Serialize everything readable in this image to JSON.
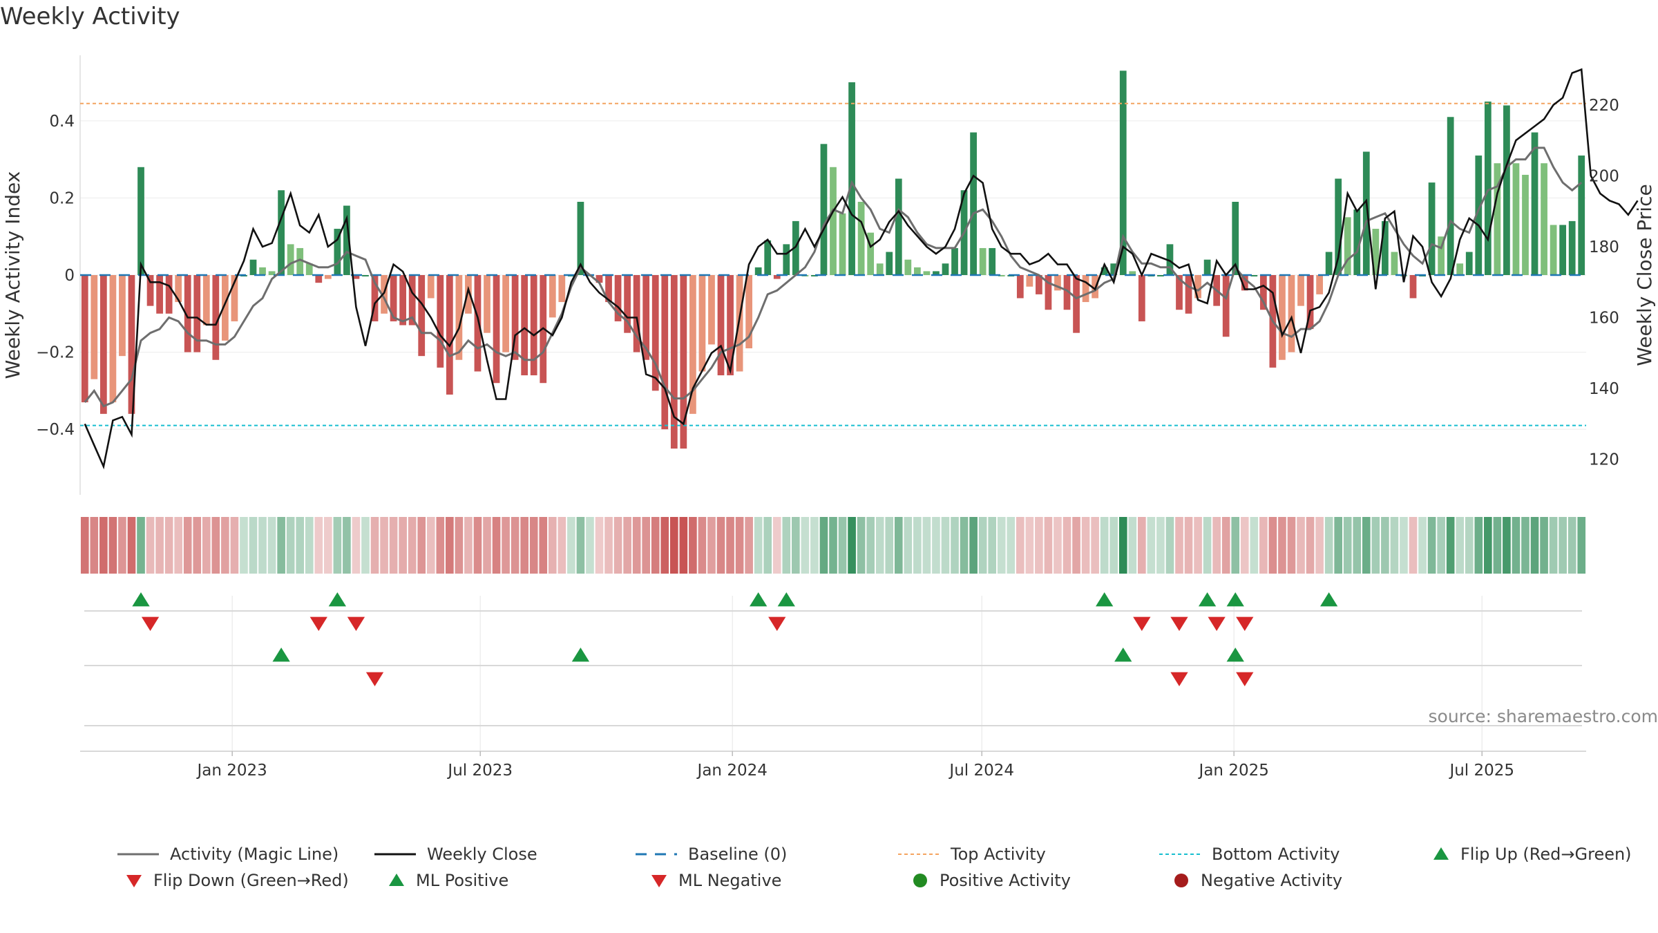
{
  "title": "Weekly Activity",
  "source": "source: sharemaestro.com",
  "colors": {
    "pos_strong": "#2e8b57",
    "pos_light": "#7fbf7b",
    "neg_strong": "#c85454",
    "neg_light": "#e8957a",
    "magic_line": "#6e6e6e",
    "close_line": "#111111",
    "baseline": "#1f77b4",
    "top_line": "#f4a460",
    "bottom_line": "#17becf",
    "marker_up": "#1a9641",
    "marker_down": "#d62728",
    "positive_dot": "#228b22",
    "negative_dot": "#a51c1c"
  },
  "chart_data": {
    "type": "bar",
    "title": "Weekly Activity",
    "ylabel": "Weekly Activity Index",
    "y2label": "Weekly Close Price",
    "ylim": [
      -0.57,
      0.57
    ],
    "y2lim": [
      110,
      234
    ],
    "yticks": [
      {
        "v": 0.4,
        "label": "0.4"
      },
      {
        "v": 0.2,
        "label": "0.2"
      },
      {
        "v": 0,
        "label": "0"
      },
      {
        "v": -0.2,
        "label": "−0.2"
      },
      {
        "v": -0.4,
        "label": "−0.4"
      }
    ],
    "y2ticks": [
      120,
      140,
      160,
      180,
      200,
      220
    ],
    "top_activity": 0.445,
    "bottom_activity": -0.39,
    "baseline": 0,
    "date_range": [
      "2022-09-12",
      "2025-09-15"
    ],
    "xticks": [
      {
        "date": "2023-01-01",
        "label": "Jan 2023"
      },
      {
        "date": "2023-07-01",
        "label": "Jul 2023"
      },
      {
        "date": "2024-01-01",
        "label": "Jan 2024"
      },
      {
        "date": "2024-07-01",
        "label": "Jul 2024"
      },
      {
        "date": "2025-01-01",
        "label": "Jan 2025"
      },
      {
        "date": "2025-07-01",
        "label": "Jul 2025"
      }
    ],
    "activity": [
      -0.33,
      -0.27,
      -0.36,
      -0.33,
      -0.21,
      -0.36,
      0.28,
      -0.08,
      -0.1,
      -0.1,
      -0.07,
      -0.2,
      -0.2,
      -0.13,
      -0.22,
      -0.17,
      -0.12,
      0.0,
      0.04,
      0.02,
      0.01,
      0.22,
      0.08,
      0.07,
      0.03,
      -0.02,
      -0.01,
      0.12,
      0.18,
      -0.01,
      0.0,
      -0.12,
      -0.1,
      -0.12,
      -0.13,
      -0.13,
      -0.21,
      -0.06,
      -0.24,
      -0.31,
      -0.22,
      -0.1,
      -0.25,
      -0.15,
      -0.28,
      -0.2,
      -0.22,
      -0.26,
      -0.26,
      -0.28,
      -0.11,
      -0.07,
      0.0,
      0.19,
      0.0,
      -0.02,
      -0.07,
      -0.12,
      -0.15,
      -0.2,
      -0.22,
      -0.3,
      -0.4,
      -0.45,
      -0.45,
      -0.36,
      -0.25,
      -0.18,
      -0.26,
      -0.26,
      -0.25,
      -0.19,
      0.02,
      0.09,
      -0.01,
      0.08,
      0.14,
      0.0,
      0.0,
      0.34,
      0.28,
      0.16,
      0.5,
      0.19,
      0.11,
      0.03,
      0.06,
      0.25,
      0.04,
      0.02,
      0.01,
      0.01,
      0.03,
      0.07,
      0.22,
      0.37,
      0.07,
      0.07,
      0.0,
      0.0,
      -0.06,
      -0.03,
      -0.05,
      -0.09,
      -0.04,
      -0.09,
      -0.15,
      -0.07,
      -0.06,
      0.02,
      0.03,
      0.53,
      0.01,
      -0.12,
      0.0,
      0.0,
      0.08,
      -0.09,
      -0.1,
      -0.06,
      0.04,
      -0.08,
      -0.16,
      0.19,
      -0.04,
      0.0,
      -0.09,
      -0.24,
      -0.22,
      -0.2,
      -0.08,
      -0.14,
      -0.05,
      0.06,
      0.25,
      0.15,
      0.17,
      0.32,
      0.12,
      0.14,
      0.06,
      0.0,
      -0.06,
      0.0,
      0.24,
      0.1,
      0.41,
      0.03,
      0.06,
      0.31,
      0.45,
      0.29,
      0.44,
      0.29,
      0.26,
      0.37,
      0.29,
      0.13,
      0.13,
      0.14,
      0.31
    ],
    "magic_line": [
      -0.33,
      -0.3,
      -0.34,
      -0.33,
      -0.3,
      -0.27,
      -0.17,
      -0.15,
      -0.14,
      -0.11,
      -0.12,
      -0.15,
      -0.17,
      -0.17,
      -0.18,
      -0.18,
      -0.16,
      -0.12,
      -0.08,
      -0.06,
      -0.01,
      0.01,
      0.03,
      0.04,
      0.03,
      0.02,
      0.02,
      0.03,
      0.06,
      0.05,
      0.04,
      -0.02,
      -0.06,
      -0.11,
      -0.12,
      -0.11,
      -0.15,
      -0.15,
      -0.17,
      -0.21,
      -0.2,
      -0.17,
      -0.19,
      -0.18,
      -0.2,
      -0.21,
      -0.2,
      -0.22,
      -0.22,
      -0.2,
      -0.15,
      -0.1,
      -0.03,
      0.02,
      0.0,
      -0.02,
      -0.07,
      -0.1,
      -0.12,
      -0.16,
      -0.19,
      -0.23,
      -0.29,
      -0.32,
      -0.32,
      -0.3,
      -0.27,
      -0.24,
      -0.2,
      -0.19,
      -0.18,
      -0.16,
      -0.11,
      -0.05,
      -0.04,
      -0.02,
      0.0,
      0.02,
      0.06,
      0.13,
      0.17,
      0.16,
      0.24,
      0.2,
      0.17,
      0.12,
      0.11,
      0.17,
      0.15,
      0.11,
      0.08,
      0.07,
      0.07,
      0.07,
      0.11,
      0.16,
      0.17,
      0.14,
      0.1,
      0.05,
      0.02,
      0.01,
      0.0,
      -0.02,
      -0.03,
      -0.04,
      -0.06,
      -0.05,
      -0.04,
      -0.02,
      -0.01,
      0.1,
      0.06,
      0.03,
      0.03,
      0.02,
      0.02,
      -0.01,
      -0.03,
      -0.04,
      -0.02,
      -0.04,
      -0.06,
      0.02,
      -0.01,
      -0.03,
      -0.07,
      -0.12,
      -0.15,
      -0.16,
      -0.14,
      -0.14,
      -0.12,
      -0.07,
      0.0,
      0.04,
      0.06,
      0.14,
      0.15,
      0.16,
      0.12,
      0.08,
      0.05,
      0.03,
      0.08,
      0.07,
      0.14,
      0.12,
      0.11,
      0.17,
      0.22,
      0.23,
      0.28,
      0.3,
      0.3,
      0.33,
      0.33,
      0.28,
      0.24,
      0.22,
      0.24
    ],
    "close": [
      130,
      124,
      118,
      131,
      132,
      127,
      175,
      170,
      170,
      169,
      165,
      160,
      160,
      158,
      158,
      164,
      170,
      176,
      185,
      180,
      181,
      188,
      195,
      186,
      184,
      189,
      180,
      182,
      188,
      163,
      152,
      164,
      167,
      175,
      173,
      167,
      164,
      160,
      155,
      152,
      157,
      168,
      160,
      148,
      137,
      137,
      155,
      157,
      155,
      157,
      155,
      160,
      170,
      175,
      170,
      167,
      165,
      163,
      160,
      160,
      144,
      143,
      140,
      132,
      130,
      140,
      145,
      150,
      152,
      145,
      160,
      175,
      180,
      182,
      178,
      178,
      180,
      185,
      180,
      185,
      190,
      194,
      189,
      187,
      180,
      182,
      187,
      190,
      186,
      183,
      180,
      178,
      180,
      185,
      195,
      200,
      198,
      185,
      180,
      178,
      178,
      175,
      176,
      178,
      175,
      175,
      171,
      170,
      168,
      175,
      170,
      180,
      178,
      172,
      178,
      177,
      176,
      174,
      175,
      165,
      164,
      176,
      172,
      175,
      168,
      168,
      169,
      167,
      155,
      160,
      150,
      162,
      163,
      167,
      177,
      195,
      190,
      193,
      168,
      188,
      190,
      170,
      183,
      180,
      170,
      166,
      171,
      182,
      188,
      186,
      182,
      195,
      203,
      210,
      212,
      214,
      216,
      220,
      222,
      229,
      230,
      200,
      195,
      193,
      192,
      189,
      193
    ]
  },
  "legend": [
    {
      "label": "Activity (Magic Line)",
      "symbol": "line",
      "color": "#6e6e6e"
    },
    {
      "label": "Weekly Close",
      "symbol": "line",
      "color": "#111111"
    },
    {
      "label": "Baseline (0)",
      "symbol": "dash",
      "color": "#1f77b4"
    },
    {
      "label": "Top Activity",
      "symbol": "dot",
      "color": "#f4a460"
    },
    {
      "label": "Bottom Activity",
      "symbol": "dot",
      "color": "#17becf"
    },
    {
      "label": "Flip Up (Red→Green)",
      "symbol": "tri-up",
      "color": "#1a9641"
    },
    {
      "label": "Flip Down (Green→Red)",
      "symbol": "tri-down",
      "color": "#d62728"
    },
    {
      "label": "ML Positive",
      "symbol": "tri-up",
      "color": "#1a9641"
    },
    {
      "label": "ML Negative",
      "symbol": "tri-down",
      "color": "#d62728"
    },
    {
      "label": "Positive Activity",
      "symbol": "circle",
      "color": "#228b22"
    },
    {
      "label": "Negative Activity",
      "symbol": "circle",
      "color": "#a51c1c"
    }
  ]
}
